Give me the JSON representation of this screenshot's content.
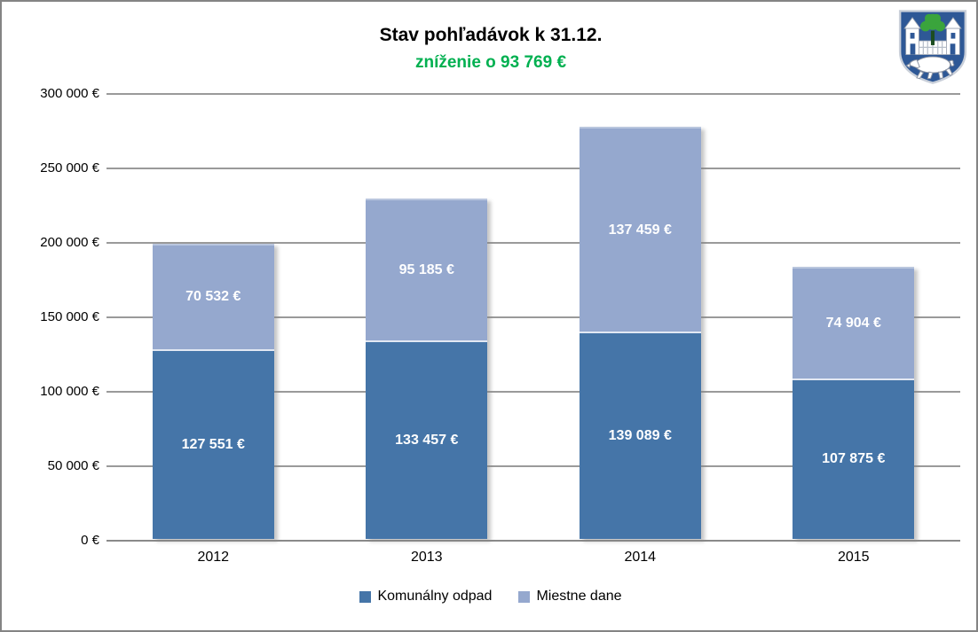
{
  "header": {
    "crest_name": "town-coat-of-arms"
  },
  "chart_data": {
    "type": "bar",
    "stacked": true,
    "title": "Stav pohľadávok k 31.12.",
    "subtitle": "zníženie o 93 769 €",
    "subtitle_color": "#00b050",
    "categories": [
      "2012",
      "2013",
      "2014",
      "2015"
    ],
    "series": [
      {
        "name": "Komunálny odpad",
        "color": "#4575a8",
        "values": [
          127551,
          133457,
          139089,
          107875
        ],
        "labels": [
          "127 551 €",
          "133 457 €",
          "139 089 €",
          "107 875 €"
        ]
      },
      {
        "name": "Miestne dane",
        "color": "#95a8ce",
        "values": [
          70532,
          95185,
          137459,
          74904
        ],
        "labels": [
          "70 532 €",
          "95 185 €",
          "137 459 €",
          "74 904 €"
        ]
      }
    ],
    "xlabel": "",
    "ylabel": "",
    "ylim": [
      0,
      300000
    ],
    "ytick_step": 50000,
    "ytick_labels": [
      "0 €",
      "50 000 €",
      "100 000 €",
      "150 000 €",
      "200 000 €",
      "250 000 €",
      "300 000 €"
    ],
    "grid": true,
    "gridline_color": "#9a9a9a",
    "legend_position": "bottom"
  }
}
